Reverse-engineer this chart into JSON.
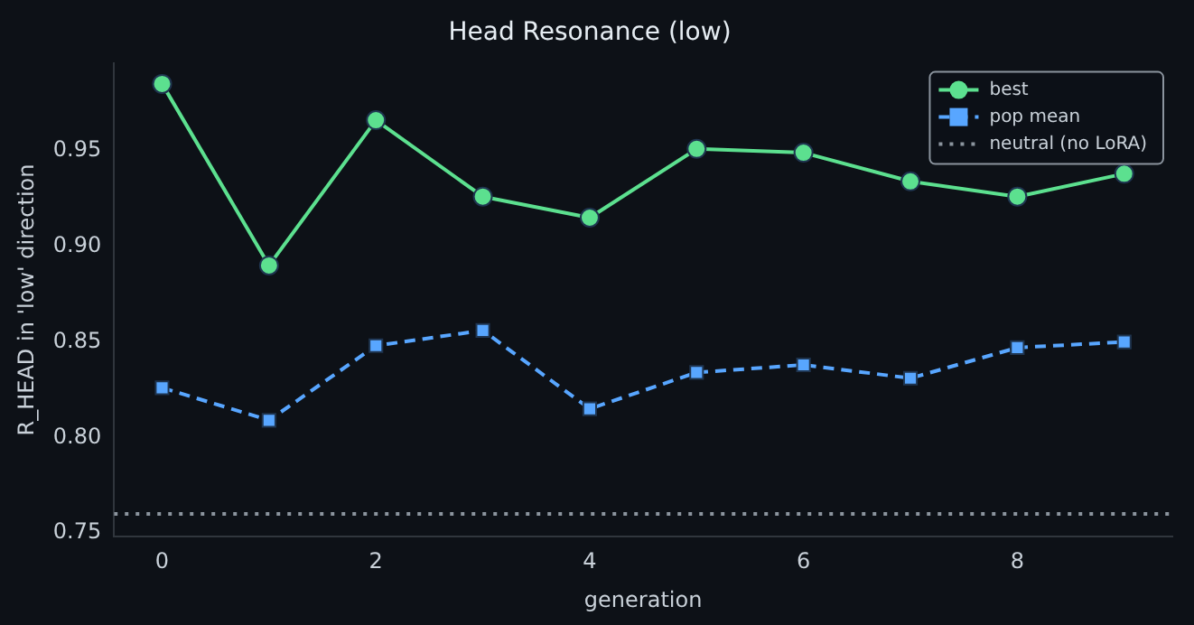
{
  "chart_data": {
    "type": "line",
    "title": "Head Resonance (low)",
    "xlabel": "generation",
    "ylabel": "R_HEAD in 'low' direction",
    "x": [
      0,
      1,
      2,
      3,
      4,
      5,
      6,
      7,
      8,
      9
    ],
    "series": [
      {
        "name": "best",
        "color": "#5ce08f",
        "marker": "circle",
        "line_style": "solid",
        "values": [
          0.985,
          0.89,
          0.966,
          0.926,
          0.915,
          0.951,
          0.949,
          0.934,
          0.926,
          0.938
        ]
      },
      {
        "name": "pop mean",
        "color": "#58a6ff",
        "marker": "square",
        "line_style": "dashed",
        "values": [
          0.826,
          0.809,
          0.848,
          0.856,
          0.815,
          0.834,
          0.838,
          0.831,
          0.847,
          0.85
        ]
      }
    ],
    "ref_lines": [
      {
        "axis": "y",
        "value": 0.76,
        "label": "neutral (no LoRA)",
        "color": "#8b949e",
        "line_style": "dotted"
      }
    ],
    "xlim": [
      -0.45,
      9.45
    ],
    "xticks": [
      0,
      2,
      4,
      6,
      8
    ],
    "ylim": [
      0.748,
      0.996
    ],
    "yticks": [
      0.75,
      {
        "value": 0.8,
        "label": "0.80"
      },
      0.85,
      {
        "value": 0.9,
        "label": "0.90"
      },
      0.95
    ],
    "grid": false,
    "legend": "top right"
  }
}
